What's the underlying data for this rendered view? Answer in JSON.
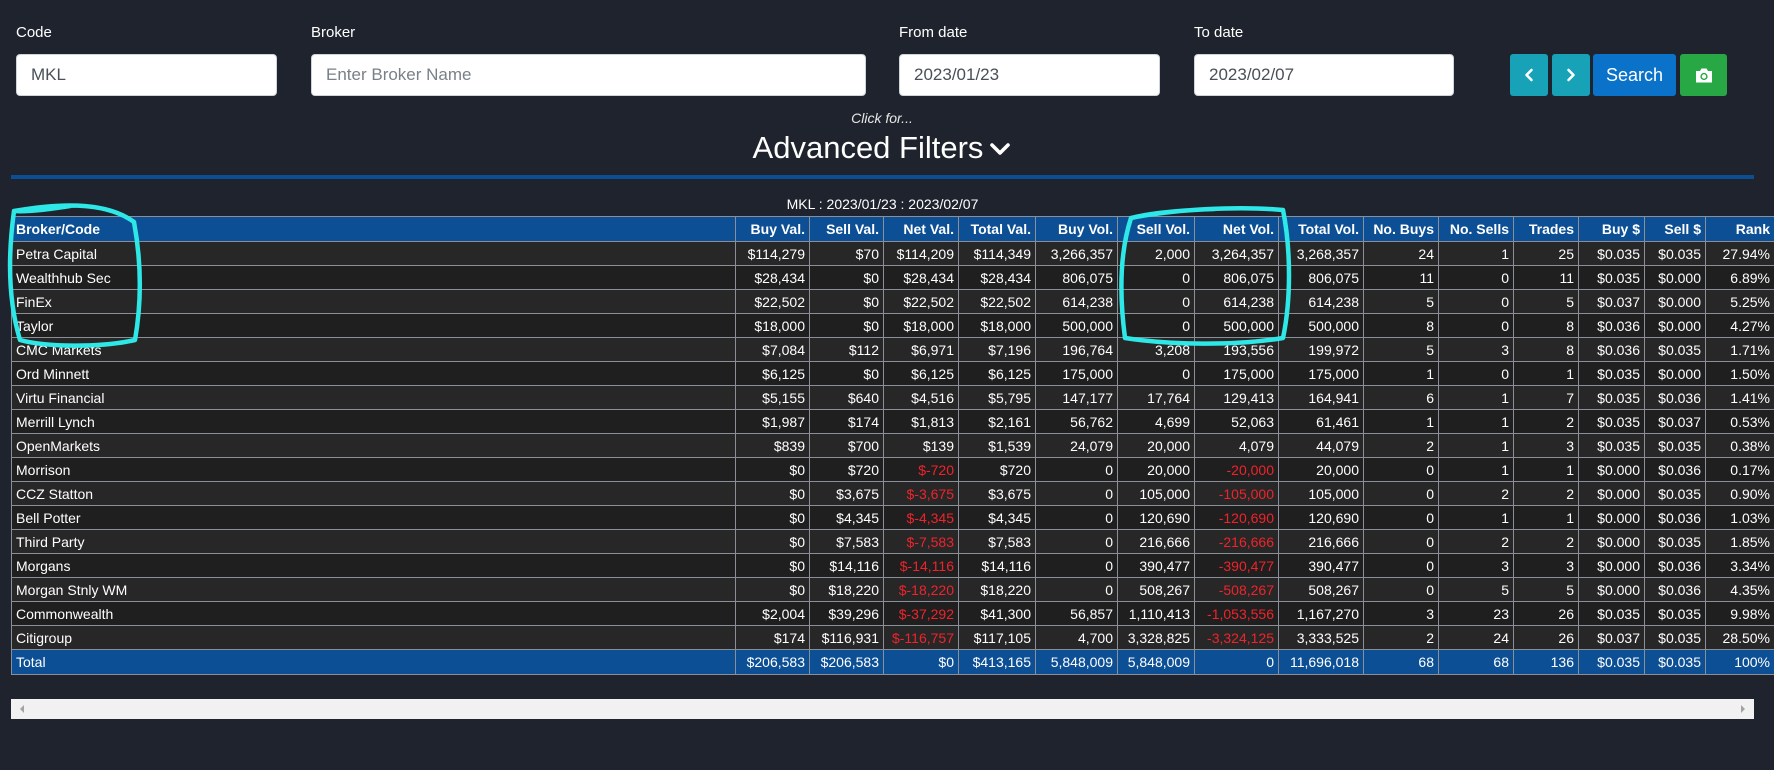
{
  "filters": {
    "code_label": "Code",
    "code_value": "MKL",
    "broker_label": "Broker",
    "broker_placeholder": "Enter Broker Name",
    "from_label": "From date",
    "from_value": "2023/01/23",
    "to_label": "To date",
    "to_value": "2023/02/07",
    "search_label": "Search"
  },
  "icons": {
    "prev": "chevron-left-icon",
    "next": "chevron-right-icon",
    "camera": "camera-icon",
    "toggle": "chevron-down-icon"
  },
  "advanced": {
    "hint": "Click for...",
    "title": "Advanced Filters"
  },
  "table": {
    "caption": "MKL : 2023/01/23 : 2023/02/07",
    "columns": [
      "Broker/Code",
      "Buy Val.",
      "Sell Val.",
      "Net Val.",
      "Total Val.",
      "Buy Vol.",
      "Sell Vol.",
      "Net Vol.",
      "Total Vol.",
      "No. Buys",
      "No. Sells",
      "Trades",
      "Buy $",
      "Sell $",
      "Rank"
    ],
    "rows": [
      [
        "Petra Capital",
        "$114,279",
        "$70",
        "$114,209",
        "$114,349",
        "3,266,357",
        "2,000",
        "3,264,357",
        "3,268,357",
        "24",
        "1",
        "25",
        "$0.035",
        "$0.035",
        "27.94%"
      ],
      [
        "Wealthhub Sec",
        "$28,434",
        "$0",
        "$28,434",
        "$28,434",
        "806,075",
        "0",
        "806,075",
        "806,075",
        "11",
        "0",
        "11",
        "$0.035",
        "$0.000",
        "6.89%"
      ],
      [
        "FinEx",
        "$22,502",
        "$0",
        "$22,502",
        "$22,502",
        "614,238",
        "0",
        "614,238",
        "614,238",
        "5",
        "0",
        "5",
        "$0.037",
        "$0.000",
        "5.25%"
      ],
      [
        "Taylor",
        "$18,000",
        "$0",
        "$18,000",
        "$18,000",
        "500,000",
        "0",
        "500,000",
        "500,000",
        "8",
        "0",
        "8",
        "$0.036",
        "$0.000",
        "4.27%"
      ],
      [
        "CMC Markets",
        "$7,084",
        "$112",
        "$6,971",
        "$7,196",
        "196,764",
        "3,208",
        "193,556",
        "199,972",
        "5",
        "3",
        "8",
        "$0.036",
        "$0.035",
        "1.71%"
      ],
      [
        "Ord Minnett",
        "$6,125",
        "$0",
        "$6,125",
        "$6,125",
        "175,000",
        "0",
        "175,000",
        "175,000",
        "1",
        "0",
        "1",
        "$0.035",
        "$0.000",
        "1.50%"
      ],
      [
        "Virtu Financial",
        "$5,155",
        "$640",
        "$4,516",
        "$5,795",
        "147,177",
        "17,764",
        "129,413",
        "164,941",
        "6",
        "1",
        "7",
        "$0.035",
        "$0.036",
        "1.41%"
      ],
      [
        "Merrill Lynch",
        "$1,987",
        "$174",
        "$1,813",
        "$2,161",
        "56,762",
        "4,699",
        "52,063",
        "61,461",
        "1",
        "1",
        "2",
        "$0.035",
        "$0.037",
        "0.53%"
      ],
      [
        "OpenMarkets",
        "$839",
        "$700",
        "$139",
        "$1,539",
        "24,079",
        "20,000",
        "4,079",
        "44,079",
        "2",
        "1",
        "3",
        "$0.035",
        "$0.035",
        "0.38%"
      ],
      [
        "Morrison",
        "$0",
        "$720",
        "$-720",
        "$720",
        "0",
        "20,000",
        "-20,000",
        "20,000",
        "0",
        "1",
        "1",
        "$0.000",
        "$0.036",
        "0.17%"
      ],
      [
        "CCZ Statton",
        "$0",
        "$3,675",
        "$-3,675",
        "$3,675",
        "0",
        "105,000",
        "-105,000",
        "105,000",
        "0",
        "2",
        "2",
        "$0.000",
        "$0.035",
        "0.90%"
      ],
      [
        "Bell Potter",
        "$0",
        "$4,345",
        "$-4,345",
        "$4,345",
        "0",
        "120,690",
        "-120,690",
        "120,690",
        "0",
        "1",
        "1",
        "$0.000",
        "$0.036",
        "1.03%"
      ],
      [
        "Third Party",
        "$0",
        "$7,583",
        "$-7,583",
        "$7,583",
        "0",
        "216,666",
        "-216,666",
        "216,666",
        "0",
        "2",
        "2",
        "$0.000",
        "$0.035",
        "1.85%"
      ],
      [
        "Morgans",
        "$0",
        "$14,116",
        "$-14,116",
        "$14,116",
        "0",
        "390,477",
        "-390,477",
        "390,477",
        "0",
        "3",
        "3",
        "$0.000",
        "$0.036",
        "3.34%"
      ],
      [
        "Morgan Stnly WM",
        "$0",
        "$18,220",
        "$-18,220",
        "$18,220",
        "0",
        "508,267",
        "-508,267",
        "508,267",
        "0",
        "5",
        "5",
        "$0.000",
        "$0.036",
        "4.35%"
      ],
      [
        "Commonwealth",
        "$2,004",
        "$39,296",
        "$-37,292",
        "$41,300",
        "56,857",
        "1,110,413",
        "-1,053,556",
        "1,167,270",
        "3",
        "23",
        "26",
        "$0.035",
        "$0.035",
        "9.98%"
      ],
      [
        "Citigroup",
        "$174",
        "$116,931",
        "$-116,757",
        "$117,105",
        "4,700",
        "3,328,825",
        "-3,324,125",
        "3,333,525",
        "2",
        "24",
        "26",
        "$0.037",
        "$0.035",
        "28.50%"
      ]
    ],
    "total": [
      "Total",
      "$206,583",
      "$206,583",
      "$0",
      "$413,165",
      "5,848,009",
      "5,848,009",
      "0",
      "11,696,018",
      "68",
      "68",
      "136",
      "$0.035",
      "$0.035",
      "100%"
    ]
  },
  "colors": {
    "background": "#1f232d",
    "header": "#0c4f95",
    "negative": "#f0232b",
    "annotation": "#2ee8e8"
  }
}
